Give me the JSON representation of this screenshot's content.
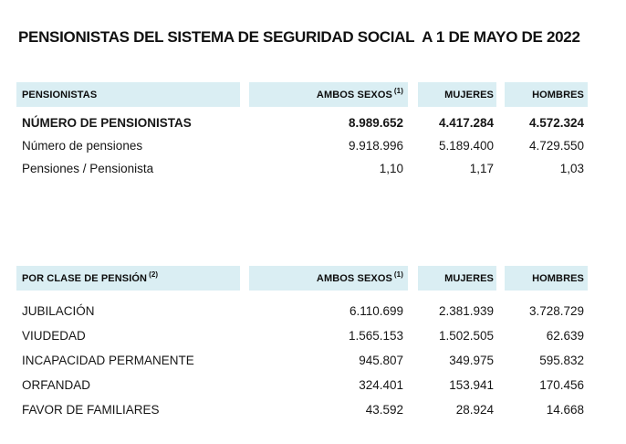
{
  "title": "PENSIONISTAS DEL SISTEMA DE SEGURIDAD SOCIAL  A 1 DE MAYO DE 2022",
  "colors": {
    "header_bg": "#daeef3",
    "text": "#161616"
  },
  "tables": [
    {
      "header": {
        "label": "PENSIONISTAS",
        "sup": ""
      },
      "columns": [
        {
          "label": "AMBOS SEXOS",
          "sup": "(1)"
        },
        {
          "label": "MUJERES",
          "sup": ""
        },
        {
          "label": "HOMBRES",
          "sup": ""
        }
      ],
      "rows": [
        {
          "label": "NÚMERO DE PENSIONISTAS",
          "values": [
            "8.989.652",
            "4.417.284",
            "4.572.324"
          ]
        },
        {
          "label": "Número de pensiones",
          "values": [
            "9.918.996",
            "5.189.400",
            "4.729.550"
          ]
        },
        {
          "label": "Pensiones / Pensionista",
          "values": [
            "1,10",
            "1,17",
            "1,03"
          ]
        }
      ]
    },
    {
      "header": {
        "label": "POR CLASE DE PENSIÓN",
        "sup": "(2)"
      },
      "columns": [
        {
          "label": "AMBOS SEXOS",
          "sup": "(1)"
        },
        {
          "label": "MUJERES",
          "sup": ""
        },
        {
          "label": "HOMBRES",
          "sup": ""
        }
      ],
      "rows": [
        {
          "label": "JUBILACIÓN",
          "values": [
            "6.110.699",
            "2.381.939",
            "3.728.729"
          ]
        },
        {
          "label": "VIUDEDAD",
          "values": [
            "1.565.153",
            "1.502.505",
            "62.639"
          ]
        },
        {
          "label": "INCAPACIDAD PERMANENTE",
          "values": [
            "945.807",
            "349.975",
            "595.832"
          ]
        },
        {
          "label": "ORFANDAD",
          "values": [
            "324.401",
            "153.941",
            "170.456"
          ]
        },
        {
          "label": "FAVOR DE FAMILIARES",
          "values": [
            "43.592",
            "28.924",
            "14.668"
          ]
        }
      ]
    }
  ]
}
